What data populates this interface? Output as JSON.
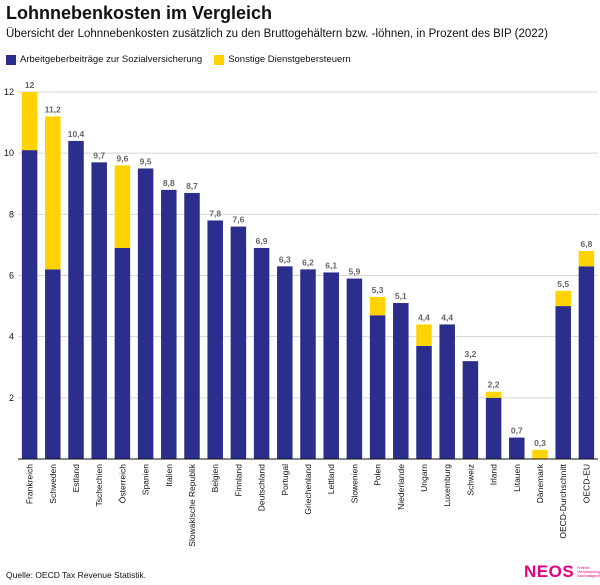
{
  "title": "Lohnnebenkosten im Vergleich",
  "subtitle": "Übersicht der Lohnnebenkosten zusätzlich zu den Bruttogehältern bzw. -löhnen, in Prozent des BIP (2022)",
  "source": "Quelle: OECD Tax Revenue Statistik.",
  "logo": {
    "word": "NEOS",
    "tagline": "Freiheit Verantwortung Nachhaltigkeit"
  },
  "colors": {
    "primary_series": "#2b2e8c",
    "secondary_series": "#ffd300",
    "logo": "#e6007e",
    "grid": "#d6d6d6",
    "label": "#666666"
  },
  "chart_data": {
    "type": "bar",
    "stacked": true,
    "title": "Lohnnebenkosten im Vergleich",
    "xlabel": "",
    "ylabel": "",
    "ylim": [
      0,
      12
    ],
    "yticks": [
      2,
      4,
      6,
      8,
      10,
      12
    ],
    "grid": true,
    "legend_position": "top-left",
    "categories": [
      "Frankreich",
      "Schweden",
      "Estland",
      "Tschechien",
      "Österreich",
      "Spanien",
      "Italien",
      "Slowakische Republik",
      "Belgien",
      "Finnland",
      "Deutschland",
      "Portugal",
      "Griechenland",
      "Lettland",
      "Slowenien",
      "Polen",
      "Niederlande",
      "Ungarn",
      "Luxemburg",
      "Schweiz",
      "Irland",
      "Litauen",
      "Dänemark",
      "OECD-Durchschnitt",
      "OECD-EU"
    ],
    "series": [
      {
        "name": "Arbeitgeberbeiträge zur Sozialversicherung",
        "values": [
          10.1,
          6.2,
          10.4,
          9.7,
          6.9,
          9.5,
          8.8,
          8.7,
          7.8,
          7.6,
          6.9,
          6.3,
          6.2,
          6.1,
          5.9,
          4.7,
          5.1,
          3.7,
          4.4,
          3.2,
          2.0,
          0.7,
          0.0,
          5.0,
          6.3
        ]
      },
      {
        "name": "Sonstige Dienstgebersteuern",
        "values": [
          1.9,
          5.0,
          0.0,
          0.0,
          2.7,
          0.0,
          0.0,
          0.0,
          0.0,
          0.0,
          0.0,
          0.0,
          0.0,
          0.0,
          0.0,
          0.6,
          0.0,
          0.7,
          0.0,
          0.0,
          0.2,
          0.0,
          0.3,
          0.5,
          0.5
        ]
      }
    ],
    "total_labels": [
      "12",
      "11,2",
      "10,4",
      "9,7",
      "9,6",
      "9,5",
      "8,8",
      "8,7",
      "7,8",
      "7,6",
      "6,9",
      "6,3",
      "6,2",
      "6,1",
      "5,9",
      "5,3",
      "5,1",
      "4,4",
      "4,4",
      "3,2",
      "2,2",
      "0,7",
      "0,3",
      "5,5",
      "6,8"
    ]
  }
}
